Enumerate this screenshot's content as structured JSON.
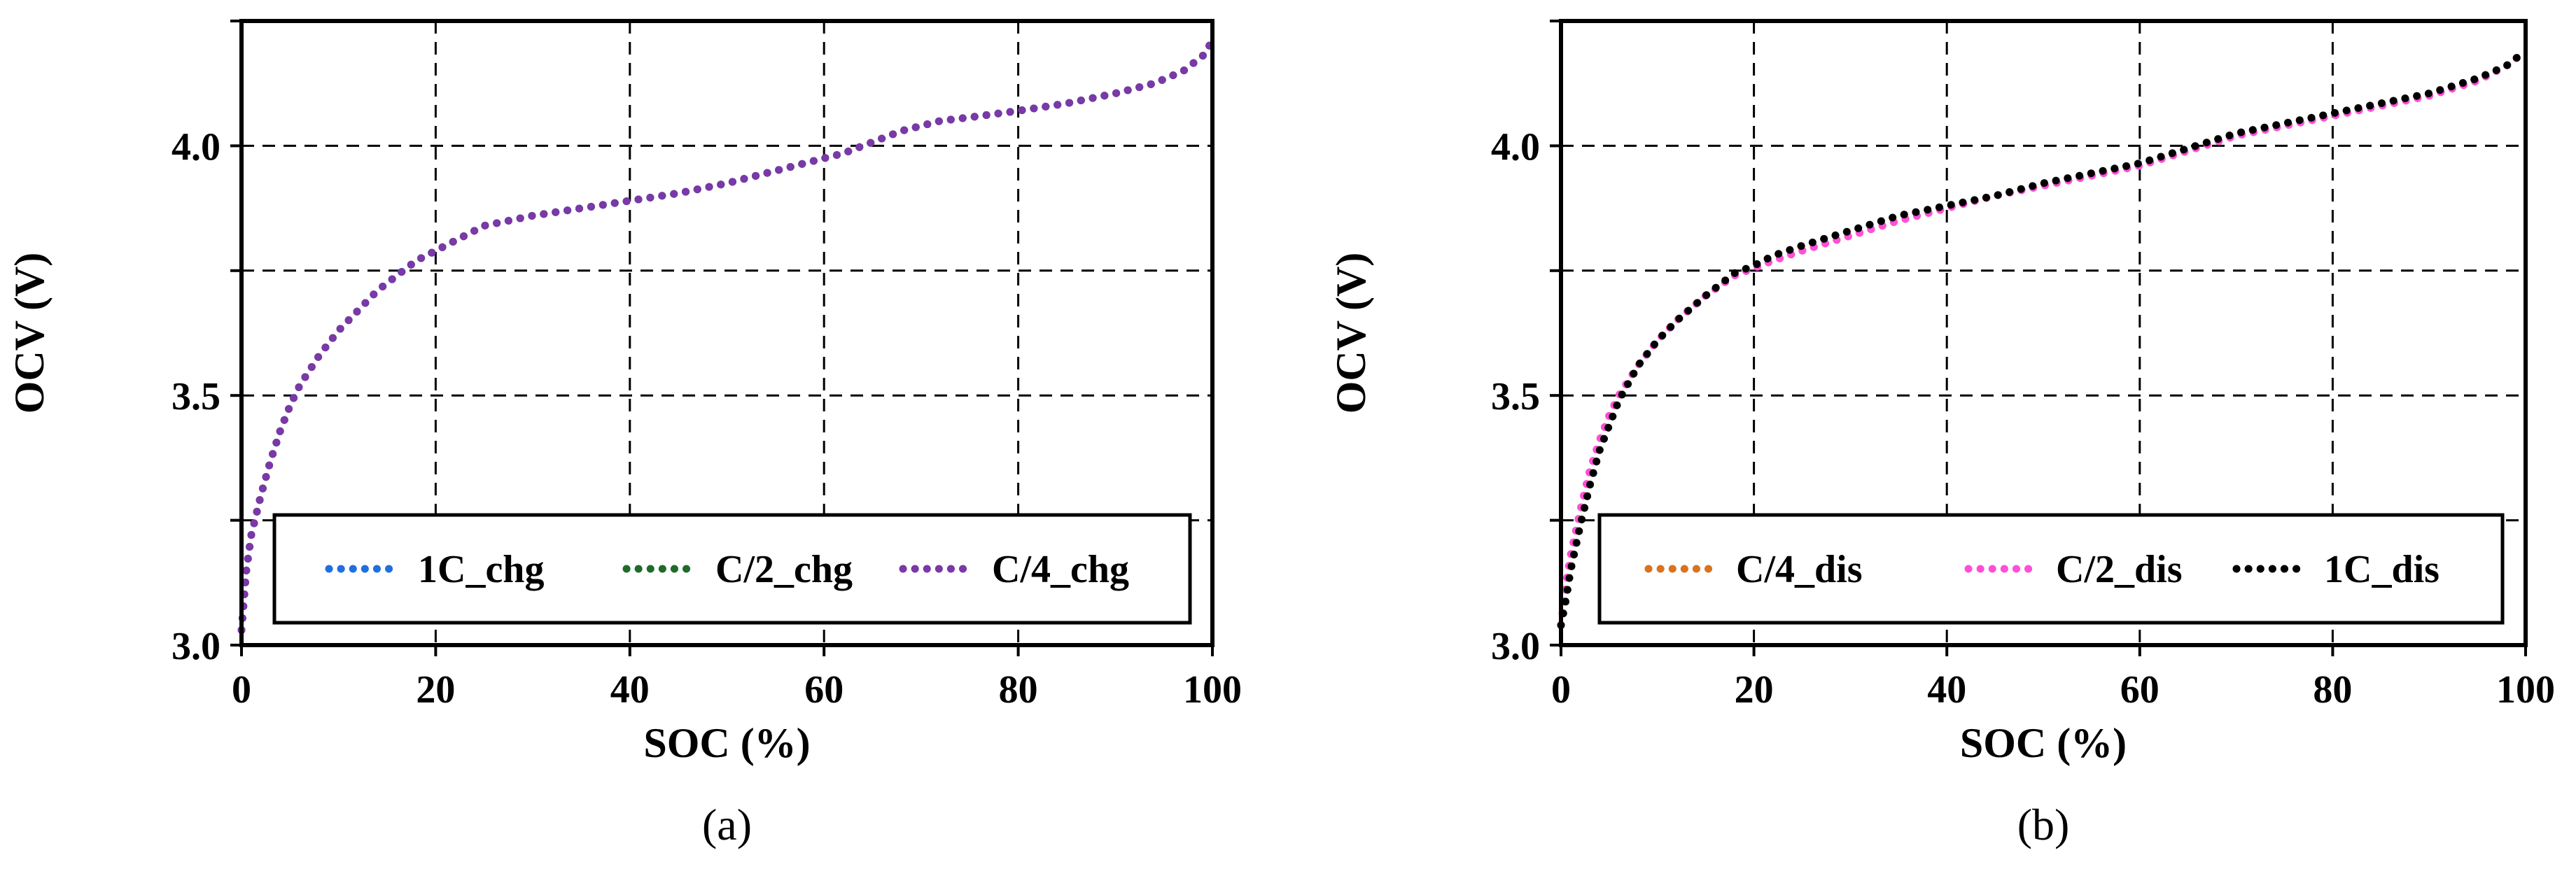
{
  "chart_data": [
    {
      "type": "line",
      "panel_label": "(a)",
      "xlabel": "SOC (%)",
      "ylabel": "OCV (V)",
      "xlim": [
        0,
        100
      ],
      "ylim": [
        3.0,
        4.25
      ],
      "x_tick_values": [
        0,
        20,
        40,
        60,
        80,
        100
      ],
      "x_tick_labels": [
        "0",
        "20",
        "40",
        "60",
        "80",
        "100"
      ],
      "y_tick_values": [
        3.0,
        3.5,
        4.0
      ],
      "y_tick_labels": [
        "3.0",
        "3.5",
        "4.0"
      ],
      "grid": true,
      "legend_position": "bottom-right",
      "series": [
        {
          "name": "1C_chg",
          "color": "#1f6fe0",
          "x": [
            0,
            0.5,
            1,
            2,
            3,
            4,
            5,
            6,
            8,
            10,
            12,
            14,
            16,
            18,
            20,
            22,
            25,
            30,
            35,
            40,
            45,
            50,
            55,
            60,
            62,
            64,
            66,
            68,
            70,
            72,
            75,
            80,
            85,
            90,
            94,
            97,
            99,
            100
          ],
          "y": [
            3.03,
            3.15,
            3.22,
            3.3,
            3.37,
            3.43,
            3.48,
            3.52,
            3.58,
            3.63,
            3.67,
            3.71,
            3.74,
            3.77,
            3.79,
            3.81,
            3.84,
            3.86,
            3.875,
            3.89,
            3.905,
            3.925,
            3.95,
            3.975,
            3.985,
            4.0,
            4.015,
            4.03,
            4.04,
            4.05,
            4.057,
            4.07,
            4.085,
            4.105,
            4.125,
            4.15,
            4.18,
            4.21
          ]
        },
        {
          "name": "C/2_chg",
          "color": "#1e6b2a",
          "x": [
            0,
            0.5,
            1,
            2,
            3,
            4,
            5,
            6,
            8,
            10,
            12,
            14,
            16,
            18,
            20,
            22,
            25,
            30,
            35,
            40,
            45,
            50,
            55,
            60,
            62,
            64,
            66,
            68,
            70,
            72,
            75,
            80,
            85,
            90,
            94,
            97,
            99,
            100
          ],
          "y": [
            3.03,
            3.15,
            3.22,
            3.3,
            3.37,
            3.43,
            3.48,
            3.52,
            3.58,
            3.63,
            3.67,
            3.71,
            3.74,
            3.77,
            3.79,
            3.81,
            3.84,
            3.86,
            3.875,
            3.89,
            3.905,
            3.925,
            3.95,
            3.975,
            3.985,
            4.0,
            4.015,
            4.03,
            4.04,
            4.05,
            4.057,
            4.07,
            4.085,
            4.105,
            4.125,
            4.15,
            4.18,
            4.21
          ]
        },
        {
          "name": "C/4_chg",
          "color": "#7a38a8",
          "x": [
            0,
            0.5,
            1,
            2,
            3,
            4,
            5,
            6,
            8,
            10,
            12,
            14,
            16,
            18,
            20,
            22,
            25,
            30,
            35,
            40,
            45,
            50,
            55,
            60,
            62,
            64,
            66,
            68,
            70,
            72,
            75,
            80,
            85,
            90,
            94,
            97,
            99,
            100
          ],
          "y": [
            3.03,
            3.15,
            3.22,
            3.3,
            3.37,
            3.43,
            3.48,
            3.52,
            3.58,
            3.63,
            3.67,
            3.71,
            3.74,
            3.77,
            3.79,
            3.81,
            3.84,
            3.86,
            3.875,
            3.89,
            3.905,
            3.925,
            3.95,
            3.975,
            3.985,
            4.0,
            4.015,
            4.03,
            4.04,
            4.05,
            4.057,
            4.07,
            4.085,
            4.105,
            4.125,
            4.15,
            4.18,
            4.21
          ]
        }
      ]
    },
    {
      "type": "line",
      "panel_label": "(b)",
      "xlabel": "SOC (%)",
      "ylabel": "OCV (V)",
      "xlim": [
        0,
        100
      ],
      "ylim": [
        3.0,
        4.25
      ],
      "x_tick_values": [
        0,
        20,
        40,
        60,
        80,
        100
      ],
      "x_tick_labels": [
        "0",
        "20",
        "40",
        "60",
        "80",
        "100"
      ],
      "y_tick_values": [
        3.0,
        3.5,
        4.0
      ],
      "y_tick_labels": [
        "3.0",
        "3.5",
        "4.0"
      ],
      "grid": true,
      "legend_position": "bottom-right",
      "series": [
        {
          "name": "C/4_dis",
          "color": "#d9731f",
          "x": [
            0,
            0.5,
            1,
            2,
            3,
            4,
            5,
            6,
            8,
            10,
            12,
            15,
            18,
            20,
            22,
            25,
            30,
            35,
            40,
            45,
            50,
            55,
            60,
            65,
            70,
            75,
            80,
            85,
            90,
            95,
            98,
            100
          ],
          "y": [
            3.04,
            3.12,
            3.18,
            3.27,
            3.35,
            3.41,
            3.46,
            3.5,
            3.56,
            3.61,
            3.65,
            3.7,
            3.74,
            3.755,
            3.77,
            3.79,
            3.82,
            3.85,
            3.875,
            3.9,
            3.92,
            3.94,
            3.96,
            3.99,
            4.02,
            4.04,
            4.06,
            4.08,
            4.1,
            4.13,
            4.16,
            4.19
          ]
        },
        {
          "name": "C/2_dis",
          "color": "#ff4fd8",
          "x": [
            0,
            0.5,
            1,
            2,
            3,
            4,
            5,
            6,
            8,
            10,
            12,
            15,
            18,
            20,
            22,
            25,
            30,
            35,
            40,
            45,
            50,
            55,
            60,
            65,
            70,
            75,
            80,
            85,
            90,
            95,
            98,
            100
          ],
          "y": [
            3.04,
            3.12,
            3.18,
            3.27,
            3.35,
            3.41,
            3.46,
            3.5,
            3.56,
            3.61,
            3.65,
            3.7,
            3.74,
            3.755,
            3.77,
            3.79,
            3.82,
            3.85,
            3.875,
            3.9,
            3.92,
            3.94,
            3.96,
            3.99,
            4.02,
            4.04,
            4.06,
            4.08,
            4.1,
            4.13,
            4.16,
            4.19
          ]
        },
        {
          "name": "1C_dis",
          "color": "#000000",
          "x": [
            0,
            0.5,
            1,
            2,
            3,
            4,
            5,
            6,
            8,
            10,
            12,
            15,
            18,
            20,
            22,
            25,
            30,
            35,
            40,
            45,
            50,
            55,
            60,
            65,
            70,
            75,
            80,
            85,
            90,
            95,
            98,
            100
          ],
          "y": [
            3.04,
            3.09,
            3.15,
            3.24,
            3.32,
            3.39,
            3.44,
            3.49,
            3.56,
            3.61,
            3.65,
            3.7,
            3.745,
            3.76,
            3.78,
            3.8,
            3.83,
            3.86,
            3.88,
            3.9,
            3.925,
            3.945,
            3.965,
            3.995,
            4.025,
            4.045,
            4.065,
            4.085,
            4.105,
            4.135,
            4.16,
            4.19
          ]
        }
      ]
    }
  ]
}
